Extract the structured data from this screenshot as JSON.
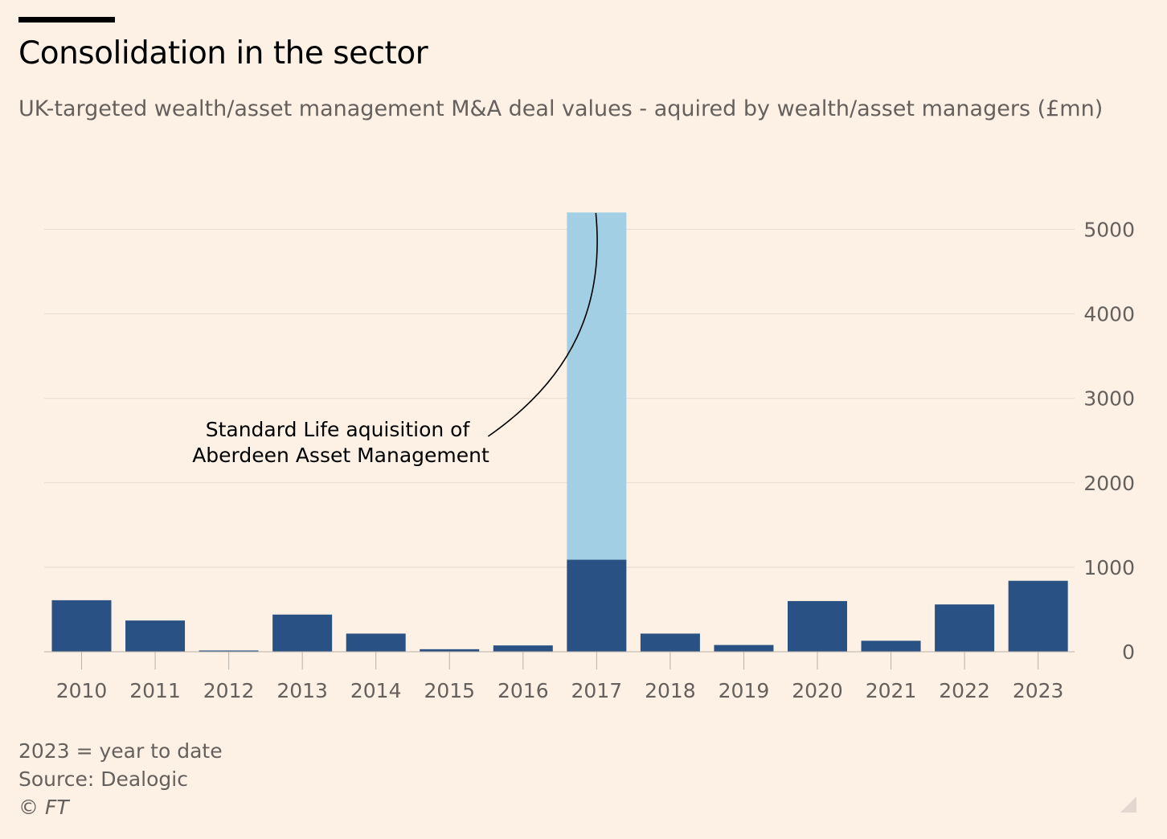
{
  "header": {
    "title": "Consolidation in the sector",
    "subtitle": "UK-targeted wealth/asset management M&A deal values - aquired by wealth/asset managers (£mn)"
  },
  "footer": {
    "note": "2023 = year to date",
    "source": "Source: Dealogic",
    "copyright": "© FT"
  },
  "colors": {
    "background": "#FDF1E6",
    "bar": "#2A5183",
    "highlight": "#A2CFE3",
    "grid": "#E6DBD1",
    "axis_text": "#66605C"
  },
  "chart_data": {
    "type": "bar",
    "categories": [
      "2010",
      "2011",
      "2012",
      "2013",
      "2014",
      "2015",
      "2016",
      "2017",
      "2018",
      "2019",
      "2020",
      "2021",
      "2022",
      "2023"
    ],
    "series": [
      {
        "values": [
          610,
          370,
          15,
          440,
          215,
          30,
          75,
          1090,
          215,
          80,
          600,
          130,
          560,
          840
        ]
      },
      {
        "values": [
          0,
          0,
          0,
          0,
          0,
          0,
          0,
          4110,
          0,
          0,
          0,
          0,
          0,
          0
        ]
      }
    ],
    "stacked": true,
    "yticks": [
      "0",
      "1000",
      "2000",
      "3000",
      "4000",
      "5000"
    ],
    "ylim": [
      0,
      5200
    ],
    "y_axis_side": "right",
    "grid": true,
    "annotation": {
      "lines": [
        "Standard Life aquisition of",
        "Aberdeen Asset Management"
      ],
      "category": "2017"
    }
  }
}
